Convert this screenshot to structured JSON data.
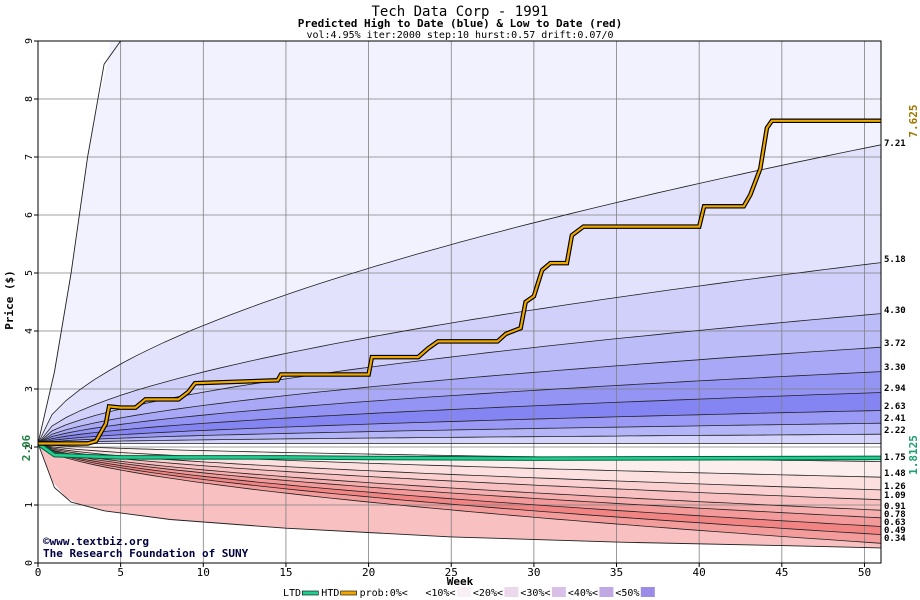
{
  "chart_data": {
    "type": "area",
    "title": "Tech Data Corp - 1991",
    "subtitle": "Predicted High to Date (blue) &  Low to Date (red)",
    "params": "vol:4.95% iter:2000 step:10 hurst:0.57 drift:0.07/0",
    "xlabel": "Week",
    "ylabel": "Price ($)",
    "xlim": [
      0,
      51
    ],
    "ylim": [
      0,
      9
    ],
    "xticks": [
      0,
      5,
      10,
      15,
      20,
      25,
      30,
      35,
      40,
      45,
      50
    ],
    "yticks": [
      0,
      1,
      2,
      3,
      4,
      5,
      6,
      7,
      8,
      9
    ],
    "grid": true,
    "start_price": 2.06,
    "start_price_label": "2.06",
    "htd_final_label": "7.625",
    "ltd_final_label": "1.8125",
    "credit_line1": "©www.textbiz.org",
    "credit_line2": "The Research Foundation of SUNY",
    "upper_band_labels": [
      "7.21",
      "5.18",
      "4.30",
      "3.72",
      "3.30",
      "2.94",
      "2.63",
      "2.41",
      "2.22"
    ],
    "lower_band_labels": [
      "1.75",
      "1.48",
      "1.26",
      "1.09",
      "0.91",
      "0.78",
      "0.63",
      "0.49",
      "0.34"
    ],
    "upper_band_finals": [
      7.21,
      5.18,
      4.3,
      3.72,
      3.3,
      2.94,
      2.63,
      2.41,
      2.22
    ],
    "lower_band_finals": [
      1.75,
      1.48,
      1.26,
      1.09,
      0.91,
      0.78,
      0.63,
      0.49,
      0.34
    ],
    "upper_band_colors": [
      "#f2f2ff",
      "#e2e2fc",
      "#d0d0fa",
      "#bcbcf8",
      "#a8a8f6",
      "#9494f4",
      "#8484f2",
      "#9a9af6",
      "#b4b4f8",
      "#d4d4fc"
    ],
    "lower_band_colors": [
      "#ffffff",
      "#fdeeee",
      "#fce0e0",
      "#fad0d0",
      "#f8c0c0",
      "#f6aeae",
      "#f49a9a",
      "#f28484",
      "#f49c9c",
      "#f8c0c0",
      "#fce4e4"
    ],
    "outer_envelope": {
      "upper": [
        [
          0,
          2.06
        ],
        [
          1,
          3.3
        ],
        [
          2,
          5.0
        ],
        [
          3,
          7.0
        ],
        [
          4,
          8.6
        ],
        [
          5,
          9.0
        ]
      ],
      "lower": [
        [
          0,
          2.06
        ],
        [
          1,
          1.3
        ],
        [
          2,
          1.05
        ],
        [
          4,
          0.9
        ],
        [
          8,
          0.75
        ],
        [
          15,
          0.6
        ],
        [
          25,
          0.45
        ],
        [
          35,
          0.36
        ],
        [
          45,
          0.3
        ],
        [
          51,
          0.26
        ]
      ]
    },
    "htd_series": {
      "name": "HTD",
      "color": "#f0a800",
      "points": [
        [
          0,
          2.06
        ],
        [
          3,
          2.06
        ],
        [
          3.5,
          2.1
        ],
        [
          4.1,
          2.4
        ],
        [
          4.3,
          2.7
        ],
        [
          5,
          2.68
        ],
        [
          5.9,
          2.68
        ],
        [
          6.2,
          2.75
        ],
        [
          6.5,
          2.82
        ],
        [
          8.5,
          2.82
        ],
        [
          9.1,
          2.95
        ],
        [
          9.5,
          3.1
        ],
        [
          14.5,
          3.15
        ],
        [
          14.7,
          3.25
        ],
        [
          20,
          3.25
        ],
        [
          20.2,
          3.55
        ],
        [
          23,
          3.55
        ],
        [
          23.6,
          3.7
        ],
        [
          24.2,
          3.82
        ],
        [
          27.8,
          3.82
        ],
        [
          28.3,
          3.95
        ],
        [
          29.2,
          4.05
        ],
        [
          29.5,
          4.5
        ],
        [
          30,
          4.6
        ],
        [
          30.5,
          5.05
        ],
        [
          31,
          5.17
        ],
        [
          32,
          5.17
        ],
        [
          32.3,
          5.65
        ],
        [
          33,
          5.8
        ],
        [
          40,
          5.8
        ],
        [
          40.3,
          6.15
        ],
        [
          42.7,
          6.15
        ],
        [
          43.1,
          6.35
        ],
        [
          43.7,
          6.8
        ],
        [
          44.1,
          7.5
        ],
        [
          44.4,
          7.625
        ],
        [
          51,
          7.625
        ]
      ]
    },
    "ltd_series": {
      "name": "LTD",
      "color": "#20d090",
      "points": [
        [
          0,
          2.06
        ],
        [
          1,
          1.86
        ],
        [
          5,
          1.82
        ],
        [
          15,
          1.82
        ],
        [
          20,
          1.81
        ],
        [
          30,
          1.8
        ],
        [
          51,
          1.8125
        ]
      ]
    },
    "legend": {
      "placement": "bottom",
      "items": [
        {
          "label": "LTD",
          "color": "#20d090",
          "kind": "line"
        },
        {
          "label": "HTD",
          "color": "#f0a800",
          "kind": "line"
        },
        {
          "label": "prob:0%<",
          "color": "#ffffff",
          "kind": "swatch"
        },
        {
          "label": "<10%<",
          "color": "#f8f0f4",
          "kind": "swatch"
        },
        {
          "label": "<20%<",
          "color": "#ecd8ec",
          "kind": "swatch"
        },
        {
          "label": "<30%<",
          "color": "#d8c0e8",
          "kind": "swatch"
        },
        {
          "label": "<40%<",
          "color": "#c0a8e4",
          "kind": "swatch"
        },
        {
          "label": "<50%",
          "color": "#9c8ce8",
          "kind": "swatch"
        }
      ]
    }
  }
}
